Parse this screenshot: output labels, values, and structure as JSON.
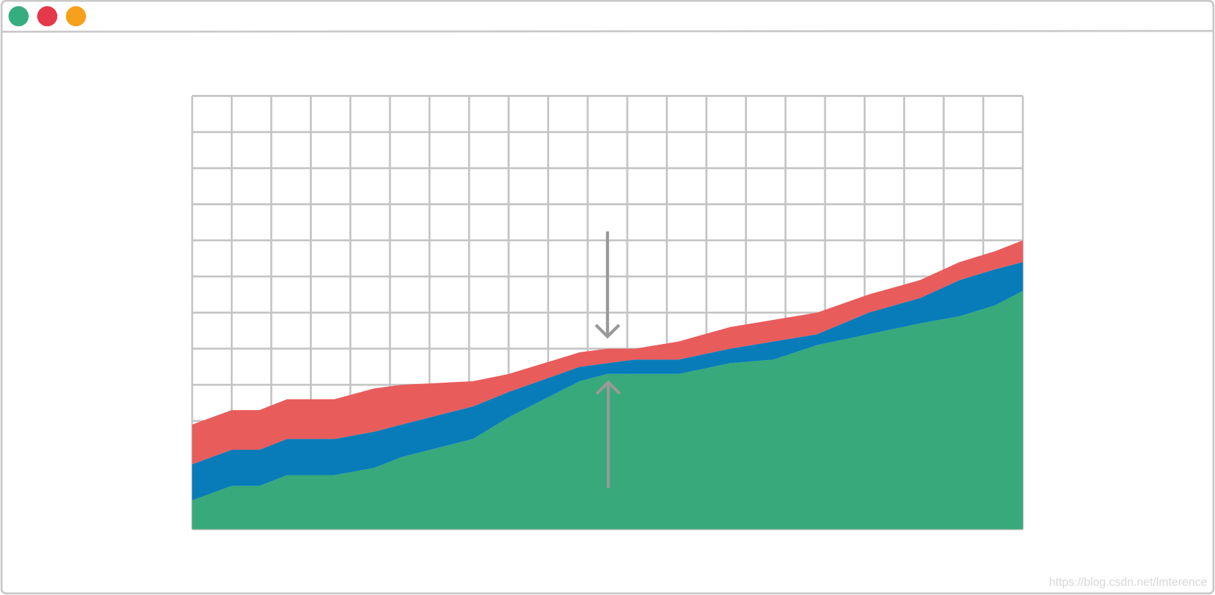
{
  "chart_data": {
    "type": "area",
    "stacked": true,
    "x": [
      0,
      1,
      1.7,
      2.4,
      3.6,
      4.6,
      5.3,
      7.1,
      8,
      9.8,
      10.5,
      11.2,
      12.3,
      13.6,
      14.7,
      15.8,
      17.1,
      18.4,
      19.4,
      20.3,
      21
    ],
    "series": [
      {
        "color": "#37a97b",
        "values": [
          0.8,
          1.2,
          1.2,
          1.5,
          1.5,
          1.7,
          2.0,
          2.5,
          3.1,
          4.1,
          4.3,
          4.3,
          4.3,
          4.6,
          4.7,
          5.1,
          5.4,
          5.7,
          5.9,
          6.2,
          6.6
        ]
      },
      {
        "color": "#087cb9",
        "values": [
          1.0,
          1.0,
          1.0,
          1.0,
          1.0,
          1.0,
          0.9,
          0.9,
          0.7,
          0.4,
          0.3,
          0.4,
          0.4,
          0.4,
          0.5,
          0.3,
          0.6,
          0.7,
          1.0,
          1.0,
          0.8
        ]
      },
      {
        "color": "#e85c5c",
        "values": [
          1.1,
          1.1,
          1.1,
          1.1,
          1.1,
          1.2,
          1.1,
          0.7,
          0.5,
          0.4,
          0.4,
          0.3,
          0.5,
          0.6,
          0.6,
          0.6,
          0.5,
          0.5,
          0.5,
          0.5,
          0.6
        ]
      }
    ],
    "xlim": [
      0,
      21
    ],
    "xticks": [
      0,
      1,
      2,
      3,
      4,
      5,
      6,
      7,
      8,
      9,
      10,
      11,
      12,
      13,
      14,
      15,
      16,
      17,
      18,
      19,
      20,
      21
    ],
    "ylim": [
      0,
      12
    ],
    "yticks": [
      0,
      1,
      2,
      3,
      4,
      5,
      6,
      7,
      8,
      9,
      10,
      11,
      12
    ],
    "grid": true,
    "grid_color": "#c4c4c4"
  },
  "watermark": "https://blog.csdn.net/lmterence"
}
